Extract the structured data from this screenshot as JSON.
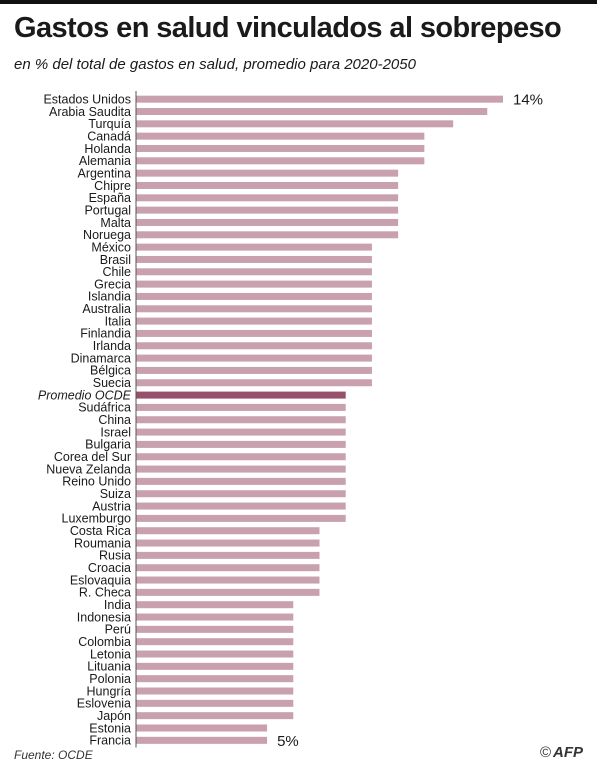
{
  "title": "Gastos en salud vinculados al sobrepeso",
  "subtitle": "en % del total de gastos en salud, promedio para 2020-2050",
  "source": "Fuente: OCDE",
  "brand": "AFP",
  "copyright_symbol": "©",
  "colors": {
    "bar": "#c9a0ad",
    "highlight_bar": "#96506c",
    "axis": "#555555",
    "text": "#1a1a1a"
  },
  "chart_data": {
    "type": "bar",
    "orientation": "horizontal",
    "title": "Gastos en salud vinculados al sobrepeso",
    "subtitle": "en % del total de gastos en salud, promedio para 2020-2050",
    "xlim": [
      0,
      14
    ],
    "grid": false,
    "highlight": "Promedio OCDE",
    "annotations": [
      {
        "category": "Estados Unidos",
        "text": "14%"
      },
      {
        "category": "Francia",
        "text": "5%"
      }
    ],
    "categories": [
      "Estados Unidos",
      "Arabia Saudita",
      "Turquía",
      "Canadá",
      "Holanda",
      "Alemania",
      "Argentina",
      "Chipre",
      "España",
      "Portugal",
      "Malta",
      "Noruega",
      "México",
      "Brasil",
      "Chile",
      "Grecia",
      "Islandia",
      "Australia",
      "Italia",
      "Finlandia",
      "Irlanda",
      "Dinamarca",
      "Bélgica",
      "Suecia",
      "Promedio OCDE",
      "Sudáfrica",
      "China",
      "Israel",
      "Bulgaria",
      "Corea del Sur",
      "Nueva Zelanda",
      "Reino Unido",
      "Suiza",
      "Austria",
      "Luxemburgo",
      "Costa Rica",
      "Roumania",
      "Rusia",
      "Croacia",
      "Eslovaquia",
      "R. Checa",
      "India",
      "Indonesia",
      "Perú",
      "Colombia",
      "Letonia",
      "Lituania",
      "Polonia",
      "Hungría",
      "Eslovenia",
      "Japón",
      "Estonia",
      "Francia"
    ],
    "values": [
      14,
      13.4,
      12.1,
      11,
      11,
      11,
      10,
      10,
      10,
      10,
      10,
      10,
      9,
      9,
      9,
      9,
      9,
      9,
      9,
      9,
      9,
      9,
      9,
      9,
      8,
      8,
      8,
      8,
      8,
      8,
      8,
      8,
      8,
      8,
      8,
      7,
      7,
      7,
      7,
      7,
      7,
      6,
      6,
      6,
      6,
      6,
      6,
      6,
      6,
      6,
      6,
      5,
      5
    ]
  }
}
